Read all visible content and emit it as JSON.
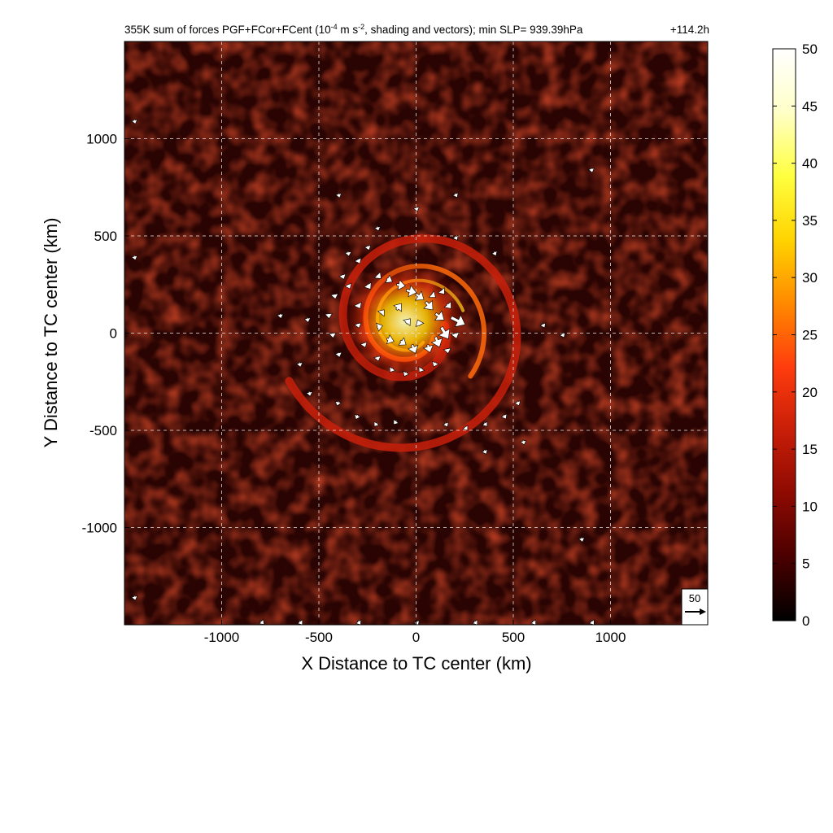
{
  "chart_data": {
    "type": "heatmap",
    "title": "355K sum of forces PGF+FCor+FCent (10",
    "title_exponent": "-4",
    "title_units": " m s",
    "title_units_exponent": "-2",
    "title_suffix": ", shading and vectors); min SLP= 939.39hPa",
    "time_label": "+114.2h",
    "xlabel": "X Distance to TC center (km)",
    "ylabel": "Y Distance to TC center (km)",
    "xlim": [
      -1500,
      1500
    ],
    "ylim": [
      -1500,
      1500
    ],
    "x_ticks": [
      {
        "value": -1000,
        "label": "-1000"
      },
      {
        "value": -500,
        "label": "-500"
      },
      {
        "value": 0,
        "label": "0"
      },
      {
        "value": 500,
        "label": "500"
      },
      {
        "value": 1000,
        "label": "1000"
      }
    ],
    "y_ticks": [
      {
        "value": 1000,
        "label": "1000"
      },
      {
        "value": 500,
        "label": "500"
      },
      {
        "value": 0,
        "label": "0"
      },
      {
        "value": -500,
        "label": "-500"
      },
      {
        "value": -1000,
        "label": "-1000"
      }
    ],
    "grid": true,
    "colorbar": {
      "range": [
        0,
        50
      ],
      "ticks": [
        {
          "value": 50,
          "label": "50"
        },
        {
          "value": 45,
          "label": "45"
        },
        {
          "value": 40,
          "label": "40"
        },
        {
          "value": 35,
          "label": "35"
        },
        {
          "value": 30,
          "label": "30"
        },
        {
          "value": 25,
          "label": "25"
        },
        {
          "value": 20,
          "label": "20"
        },
        {
          "value": 15,
          "label": "15"
        },
        {
          "value": 10,
          "label": "10"
        },
        {
          "value": 5,
          "label": "5"
        },
        {
          "value": 0,
          "label": "0"
        }
      ],
      "colors": [
        "#000000",
        "#4a0000",
        "#8e0a02",
        "#c81e08",
        "#ff3d0d",
        "#ff8a00",
        "#ffd400",
        "#ffff40",
        "#ffffc8",
        "#ffffff"
      ]
    },
    "reference_vector": {
      "value": 50,
      "label": "50"
    },
    "vectors": [
      {
        "x": -250,
        "y": 450,
        "u": 2,
        "v": -6
      },
      {
        "x": -300,
        "y": 380,
        "u": 4,
        "v": -8
      },
      {
        "x": -380,
        "y": 300,
        "u": 3,
        "v": -8
      },
      {
        "x": -420,
        "y": 200,
        "u": 2,
        "v": -10
      },
      {
        "x": -450,
        "y": 100,
        "u": 1,
        "v": -10
      },
      {
        "x": -430,
        "y": 0,
        "u": 1,
        "v": -9
      },
      {
        "x": -400,
        "y": -100,
        "u": 2,
        "v": -8
      },
      {
        "x": -350,
        "y": 250,
        "u": 4,
        "v": -9
      },
      {
        "x": -300,
        "y": 150,
        "u": 6,
        "v": -12
      },
      {
        "x": -250,
        "y": 250,
        "u": 8,
        "v": -12
      },
      {
        "x": -200,
        "y": 300,
        "u": 10,
        "v": -10
      },
      {
        "x": -150,
        "y": 280,
        "u": 14,
        "v": -8
      },
      {
        "x": -100,
        "y": 250,
        "u": 22,
        "v": -4
      },
      {
        "x": -50,
        "y": 220,
        "u": 26,
        "v": -6
      },
      {
        "x": 0,
        "y": 200,
        "u": 20,
        "v": -14
      },
      {
        "x": 50,
        "y": 160,
        "u": 18,
        "v": -20
      },
      {
        "x": 100,
        "y": 100,
        "u": 22,
        "v": -16
      },
      {
        "x": 180,
        "y": 80,
        "u": 36,
        "v": -18
      },
      {
        "x": 130,
        "y": 30,
        "u": 18,
        "v": -30
      },
      {
        "x": 100,
        "y": -20,
        "u": 10,
        "v": -26
      },
      {
        "x": 60,
        "y": -60,
        "u": 6,
        "v": -20
      },
      {
        "x": -20,
        "y": -60,
        "u": 8,
        "v": -22
      },
      {
        "x": -80,
        "y": -40,
        "u": 14,
        "v": -10
      },
      {
        "x": -150,
        "y": -30,
        "u": 18,
        "v": -6
      },
      {
        "x": -200,
        "y": 30,
        "u": 14,
        "v": 4
      },
      {
        "x": -180,
        "y": 100,
        "u": 8,
        "v": 10
      },
      {
        "x": -100,
        "y": 120,
        "u": 12,
        "v": 16
      },
      {
        "x": -50,
        "y": 50,
        "u": 10,
        "v": 12
      },
      {
        "x": 20,
        "y": 40,
        "u": -6,
        "v": 14
      },
      {
        "x": 80,
        "y": 200,
        "u": 10,
        "v": -8
      },
      {
        "x": 130,
        "y": 220,
        "u": 8,
        "v": -10
      },
      {
        "x": 160,
        "y": 150,
        "u": 10,
        "v": -12
      },
      {
        "x": 200,
        "y": 0,
        "u": 4,
        "v": -14
      },
      {
        "x": 160,
        "y": -80,
        "u": 2,
        "v": -10
      },
      {
        "x": 100,
        "y": -150,
        "u": -3,
        "v": -8
      },
      {
        "x": 30,
        "y": -180,
        "u": -4,
        "v": -6
      },
      {
        "x": -50,
        "y": -200,
        "u": -3,
        "v": -6
      },
      {
        "x": -120,
        "y": -180,
        "u": -4,
        "v": -6
      },
      {
        "x": -200,
        "y": -120,
        "u": 2,
        "v": -8
      },
      {
        "x": -270,
        "y": -50,
        "u": 3,
        "v": -8
      },
      {
        "x": -300,
        "y": 50,
        "u": 2,
        "v": -8
      },
      {
        "x": -350,
        "y": 420,
        "u": 1,
        "v": -6
      },
      {
        "x": -400,
        "y": -350,
        "u": -1,
        "v": -5
      },
      {
        "x": -300,
        "y": -420,
        "u": -2,
        "v": -5
      },
      {
        "x": -200,
        "y": -460,
        "u": -3,
        "v": -4
      },
      {
        "x": -100,
        "y": -450,
        "u": -3,
        "v": -4
      },
      {
        "x": 150,
        "y": -460,
        "u": 2,
        "v": -4
      },
      {
        "x": 250,
        "y": -480,
        "u": 3,
        "v": -4
      },
      {
        "x": 350,
        "y": -460,
        "u": 3,
        "v": -4
      },
      {
        "x": 450,
        "y": -420,
        "u": 3,
        "v": -5
      },
      {
        "x": 520,
        "y": -350,
        "u": 2,
        "v": -5
      },
      {
        "x": -600,
        "y": -150,
        "u": 1,
        "v": -5
      },
      {
        "x": -550,
        "y": -300,
        "u": 1,
        "v": -5
      },
      {
        "x": -700,
        "y": 100,
        "u": 1,
        "v": -5
      },
      {
        "x": -560,
        "y": 80,
        "u": 1,
        "v": -5
      },
      {
        "x": 650,
        "y": 50,
        "u": 2,
        "v": -4
      },
      {
        "x": 750,
        "y": 0,
        "u": 2,
        "v": -4
      },
      {
        "x": 400,
        "y": 420,
        "u": 2,
        "v": -4
      },
      {
        "x": 200,
        "y": 500,
        "u": 2,
        "v": -4
      },
      {
        "x": 0,
        "y": 650,
        "u": 1,
        "v": -4
      },
      {
        "x": 200,
        "y": 720,
        "u": 2,
        "v": -4
      },
      {
        "x": -200,
        "y": 550,
        "u": 1,
        "v": -4
      },
      {
        "x": -400,
        "y": 720,
        "u": 1,
        "v": -4
      },
      {
        "x": 550,
        "y": -550,
        "u": 1,
        "v": -4
      },
      {
        "x": 350,
        "y": -600,
        "u": 2,
        "v": -4
      },
      {
        "x": 850,
        "y": -1050,
        "u": 1,
        "v": -4
      },
      {
        "x": 900,
        "y": 850,
        "u": 1,
        "v": -4
      },
      {
        "x": -1450,
        "y": 1100,
        "u": 1,
        "v": -4
      },
      {
        "x": -1450,
        "y": 400,
        "u": 1,
        "v": -4
      },
      {
        "x": -1450,
        "y": -1350,
        "u": 1,
        "v": -4
      },
      {
        "x": -600,
        "y": -1480,
        "u": 3,
        "v": -4
      },
      {
        "x": -300,
        "y": -1480,
        "u": 3,
        "v": -4
      },
      {
        "x": 0,
        "y": -1480,
        "u": 2,
        "v": -4
      },
      {
        "x": 300,
        "y": -1480,
        "u": 3,
        "v": -4
      },
      {
        "x": 600,
        "y": -1480,
        "u": 3,
        "v": -4
      },
      {
        "x": 900,
        "y": -1480,
        "u": 3,
        "v": -4
      },
      {
        "x": -800,
        "y": -1480,
        "u": 3,
        "v": -3
      }
    ]
  }
}
